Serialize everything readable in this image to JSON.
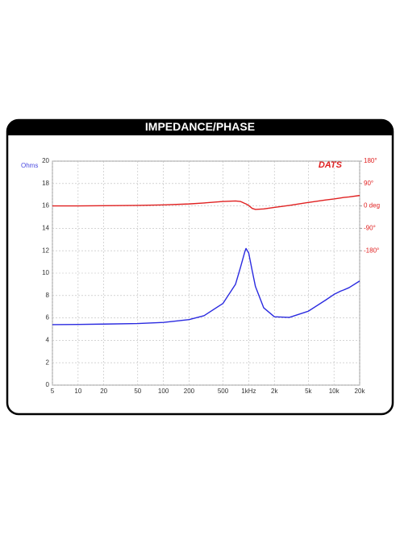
{
  "chart_data": {
    "type": "line",
    "title": "IMPEDANCE/PHASE",
    "y_label": "Ohms",
    "logo": "DATS",
    "x_scale": "log",
    "x": [
      5,
      10,
      20,
      50,
      100,
      200,
      300,
      500,
      700,
      800,
      900,
      930,
      1000,
      1100,
      1200,
      1500,
      2000,
      3000,
      5000,
      8000,
      10000,
      12000,
      13000,
      15000,
      20000
    ],
    "series": [
      {
        "color": "#2a2ae0",
        "values": [
          5.4,
          5.42,
          5.45,
          5.5,
          5.6,
          5.85,
          6.2,
          7.3,
          9.0,
          10.5,
          11.9,
          12.2,
          11.8,
          10.2,
          8.8,
          6.9,
          6.1,
          6.05,
          6.6,
          7.6,
          8.1,
          8.4,
          8.5,
          8.7,
          9.3
        ]
      },
      {
        "color": "#e02020",
        "axis": "y2",
        "values": [
          0,
          0,
          1,
          2,
          4,
          8,
          12,
          18,
          20,
          18,
          10,
          8,
          2,
          -10,
          -14,
          -12,
          -6,
          2,
          14,
          24,
          28,
          32,
          34,
          36,
          42
        ]
      }
    ],
    "xlim": [
      5,
      20000
    ],
    "xticks": [
      5,
      10,
      20,
      50,
      100,
      200,
      500,
      {
        "value": 1000,
        "label": "1kHz"
      },
      {
        "value": 2000,
        "label": "2k"
      },
      {
        "value": 5000,
        "label": "5k"
      },
      {
        "value": 10000,
        "label": "10k"
      },
      {
        "value": 20000,
        "label": "20k"
      }
    ],
    "ylim": [
      0,
      20
    ],
    "yticks": [
      0,
      2,
      4,
      6,
      8,
      10,
      12,
      14,
      16,
      18,
      20
    ],
    "y2lim": [
      -720,
      180
    ],
    "y2ticks": [
      {
        "value": 180,
        "label": "180°"
      },
      {
        "value": 90,
        "label": "90°"
      },
      {
        "value": 0,
        "label": "0 deg"
      },
      {
        "value": -90,
        "label": "-90°"
      },
      {
        "value": -180,
        "label": "-180°"
      }
    ],
    "y2_color": "#e02020",
    "grid": true
  }
}
